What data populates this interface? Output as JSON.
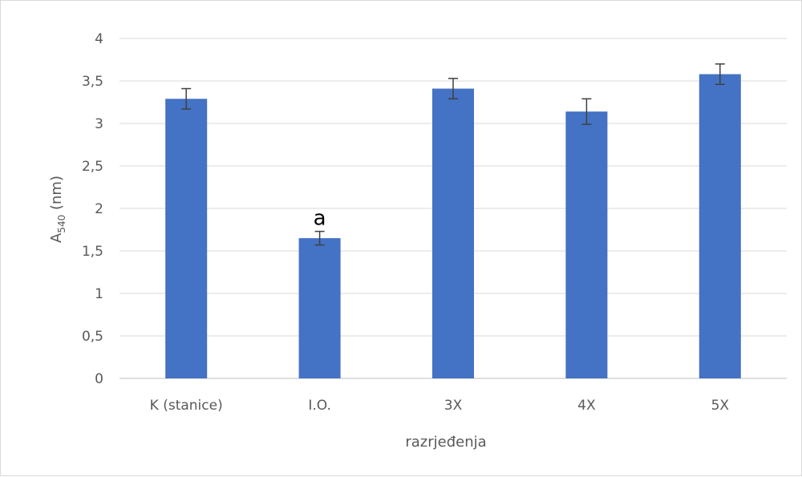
{
  "chart_data": {
    "type": "bar",
    "title": "",
    "xlabel": "razrjeđenja",
    "ylabel": {
      "main": "A",
      "sub": "540",
      "suffix": " (nm)"
    },
    "categories": [
      "K (stanice)",
      "I.O.",
      "3X",
      "4X",
      "5X"
    ],
    "values": [
      3.29,
      1.65,
      3.41,
      3.14,
      3.58
    ],
    "errors": [
      0.12,
      0.08,
      0.12,
      0.15,
      0.12
    ],
    "ylim": [
      0,
      4
    ],
    "yticks": [
      0,
      0.5,
      1,
      1.5,
      2,
      2.5,
      3,
      3.5,
      4
    ],
    "ytick_labels": [
      "0",
      "0,5",
      "1",
      "1,5",
      "2",
      "2,5",
      "3",
      "3,5",
      "4"
    ],
    "grid": true,
    "bar_color": "#4472c4",
    "annotations": [
      {
        "category": "I.O.",
        "text": "a"
      }
    ]
  }
}
